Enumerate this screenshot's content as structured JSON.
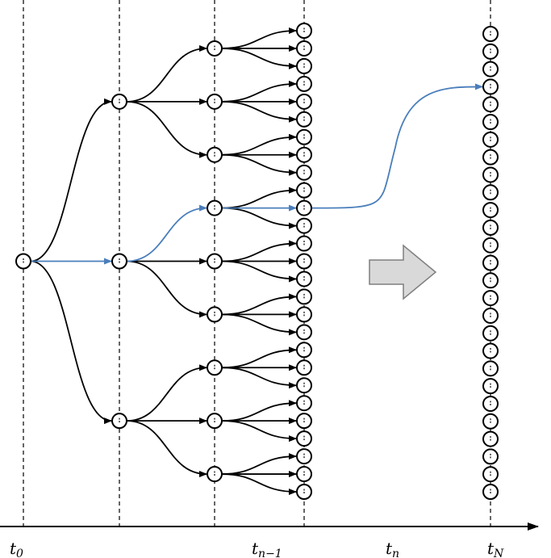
{
  "tree": {
    "levels": 4,
    "branching": 3,
    "highlight_path": [
      1,
      0,
      1
    ]
  },
  "final_nodes": {
    "count": 27,
    "highlight_index": 3
  },
  "axis": {
    "labels": [
      {
        "base": "t",
        "sub": "0"
      },
      {
        "base": "t",
        "sub": "n−1"
      },
      {
        "base": "t",
        "sub": "n"
      },
      {
        "base": "t",
        "sub": "N"
      }
    ]
  },
  "colors": {
    "stroke": "#000000",
    "highlight": "#4a7ebb",
    "arrow_fill": "#d9d9d9",
    "arrow_stroke": "#7f7f7f"
  },
  "icons": {
    "transition": "block-arrow-right"
  }
}
